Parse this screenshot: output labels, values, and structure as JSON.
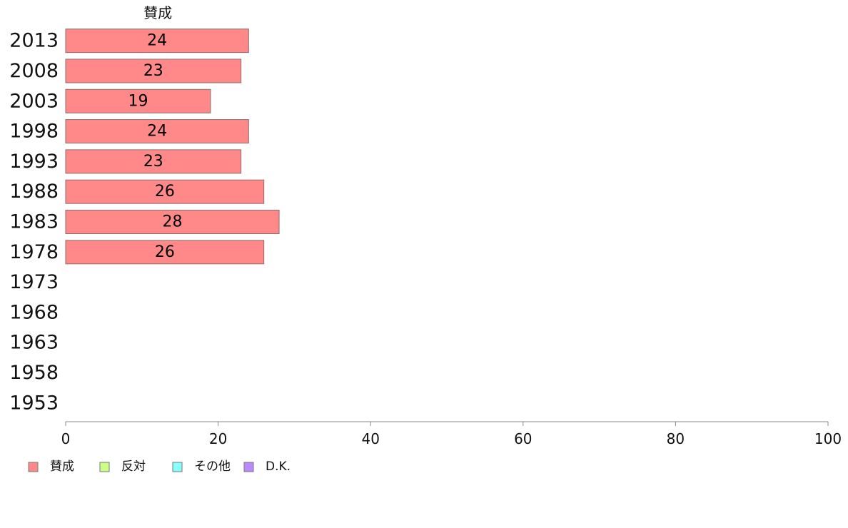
{
  "chart_data": {
    "type": "bar",
    "orientation": "horizontal",
    "stacked": true,
    "categories": [
      "2013",
      "2008",
      "2003",
      "1998",
      "1993",
      "1988",
      "1983",
      "1978",
      "1973",
      "1968",
      "1963",
      "1958",
      "1953"
    ],
    "series": [
      {
        "name": "賛成",
        "color": "#ff8888",
        "values": [
          24,
          23,
          19,
          24,
          23,
          26,
          28,
          26,
          null,
          null,
          null,
          null,
          null
        ]
      },
      {
        "name": "反対",
        "color": "#ccff88",
        "values": [
          null,
          null,
          null,
          null,
          null,
          null,
          null,
          null,
          null,
          null,
          null,
          null,
          null
        ]
      },
      {
        "name": "その他",
        "color": "#88ffff",
        "values": [
          null,
          null,
          null,
          null,
          null,
          null,
          null,
          null,
          null,
          null,
          null,
          null,
          null
        ]
      },
      {
        "name": "D.K.",
        "color": "#bb88ff",
        "values": [
          null,
          null,
          null,
          null,
          null,
          null,
          null,
          null,
          null,
          null,
          null,
          null,
          null
        ]
      }
    ],
    "top_series_label": "賛成",
    "xlim": [
      0,
      100
    ],
    "xticks": [
      0,
      20,
      40,
      60,
      80,
      100
    ],
    "xlabel": "",
    "ylabel": "",
    "grid": false,
    "legend_position": "bottom-left"
  }
}
